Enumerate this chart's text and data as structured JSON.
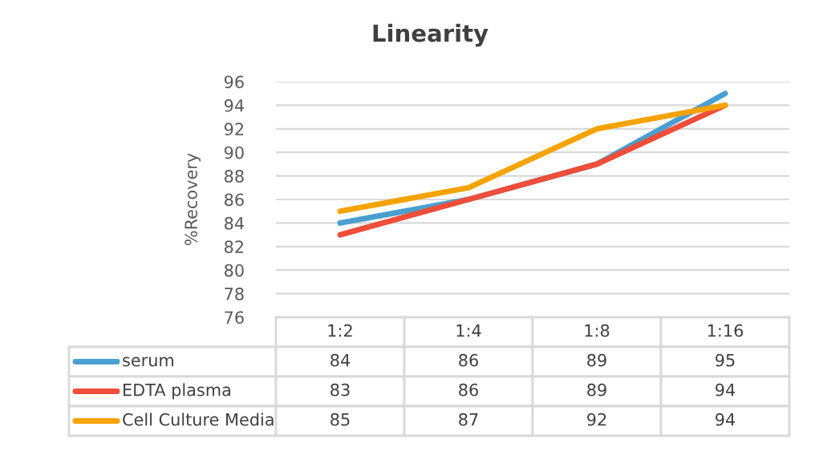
{
  "chart_data": {
    "type": "line",
    "title": "Linearity",
    "ylabel": "%Recovery",
    "categories": [
      "1:2",
      "1:4",
      "1:8",
      "1:16"
    ],
    "series": [
      {
        "name": "serum",
        "color": "#4a9fd0",
        "values": [
          84,
          86,
          89,
          95
        ]
      },
      {
        "name": "EDTA plasma",
        "color": "#ee4e3a",
        "values": [
          83,
          86,
          89,
          94
        ]
      },
      {
        "name": "Cell Culture Media",
        "color": "#f5a300",
        "values": [
          85,
          87,
          92,
          94
        ]
      }
    ],
    "ylim": [
      76,
      96
    ],
    "yticks": [
      76,
      78,
      80,
      82,
      84,
      86,
      88,
      90,
      92,
      94,
      96
    ],
    "grid": "y",
    "legend": "bottom",
    "data_labels": true,
    "marker": "none",
    "line_style": "solid"
  }
}
